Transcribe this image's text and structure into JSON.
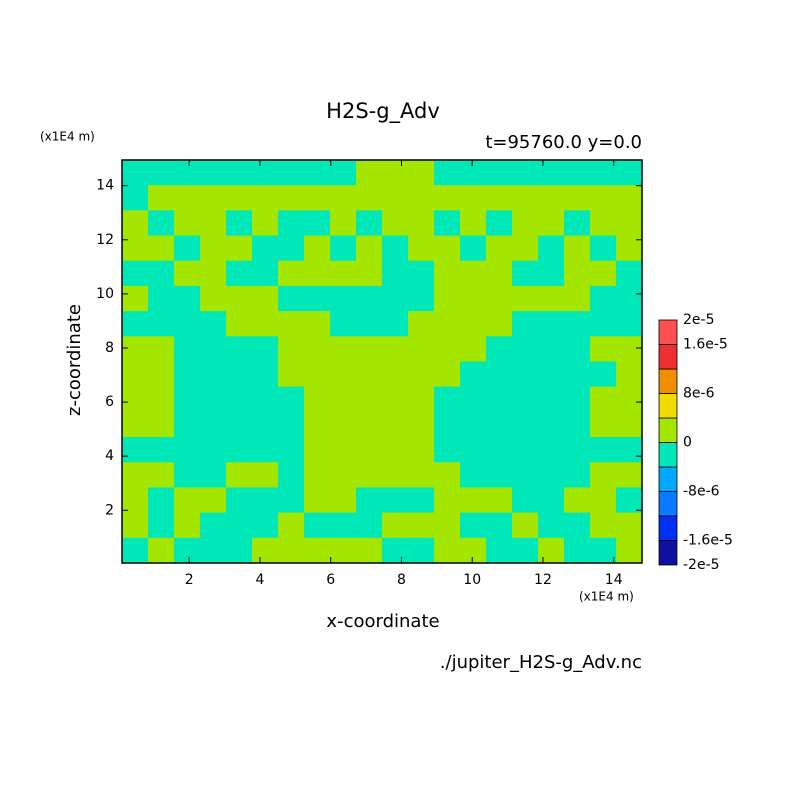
{
  "chart_data": {
    "type": "contour",
    "title": "H2S-g_Adv",
    "subtitle": "t=95760.0 y=0.0",
    "x_label": "x-coordinate",
    "y_label": "z-coordinate",
    "x_unit": "(x1E4 m)",
    "y_unit": "(x1E4 m)",
    "source": "./jupiter_H2S-g_Adv.nc",
    "xlim": [
      0.1,
      14.8
    ],
    "ylim": [
      0.05,
      14.95
    ],
    "xticks": [
      2,
      4,
      6,
      8,
      10,
      12,
      14
    ],
    "yticks": [
      2,
      4,
      6,
      8,
      10,
      12,
      14
    ],
    "z": [
      [
        -2e-06,
        -2e-06,
        -2e-06,
        -2e-06,
        -2e-06,
        -2e-06,
        -2e-06,
        -2e-06,
        -2e-06,
        2e-06,
        2e-06,
        2e-06,
        -2e-06,
        -2e-06,
        -2e-06,
        -2e-06,
        -2e-06,
        -2e-06,
        -2e-06,
        -2e-06
      ],
      [
        -2e-06,
        2e-06,
        2e-06,
        2e-06,
        2e-06,
        2e-06,
        2e-06,
        2e-06,
        2e-06,
        2e-06,
        2e-06,
        2e-06,
        2e-06,
        2e-06,
        2e-06,
        2e-06,
        2e-06,
        2e-06,
        2e-06,
        2e-06
      ],
      [
        2e-06,
        -2e-06,
        2e-06,
        2e-06,
        -2e-06,
        2e-06,
        -2e-06,
        -2e-06,
        2e-06,
        -2e-06,
        2e-06,
        2e-06,
        -2e-06,
        2e-06,
        -2e-06,
        2e-06,
        2e-06,
        -2e-06,
        2e-06,
        2e-06
      ],
      [
        2e-06,
        2e-06,
        -2e-06,
        2e-06,
        2e-06,
        -2e-06,
        -2e-06,
        2e-06,
        -2e-06,
        2e-06,
        -2e-06,
        2e-06,
        2e-06,
        -2e-06,
        2e-06,
        2e-06,
        -2e-06,
        2e-06,
        -2e-06,
        2e-06
      ],
      [
        -2e-06,
        -2e-06,
        2e-06,
        2e-06,
        -2e-06,
        -2e-06,
        2e-06,
        2e-06,
        2e-06,
        2e-06,
        -2e-06,
        -2e-06,
        2e-06,
        2e-06,
        2e-06,
        -2e-06,
        -2e-06,
        2e-06,
        2e-06,
        -2e-06
      ],
      [
        2e-06,
        -2e-06,
        -2e-06,
        2e-06,
        2e-06,
        2e-06,
        -2e-06,
        -2e-06,
        -2e-06,
        -2e-06,
        -2e-06,
        -2e-06,
        2e-06,
        2e-06,
        2e-06,
        2e-06,
        2e-06,
        2e-06,
        -2e-06,
        -2e-06
      ],
      [
        -2e-06,
        -2e-06,
        -2e-06,
        -2e-06,
        2e-06,
        2e-06,
        2e-06,
        2e-06,
        -2e-06,
        -2e-06,
        -2e-06,
        2e-06,
        2e-06,
        2e-06,
        2e-06,
        -2e-06,
        -2e-06,
        -2e-06,
        -2e-06,
        -2e-06
      ],
      [
        2e-06,
        2e-06,
        -2e-06,
        -2e-06,
        -2e-06,
        -2e-06,
        2e-06,
        2e-06,
        2e-06,
        2e-06,
        2e-06,
        2e-06,
        2e-06,
        2e-06,
        -2e-06,
        -2e-06,
        -2e-06,
        -2e-06,
        2e-06,
        2e-06
      ],
      [
        2e-06,
        2e-06,
        -2e-06,
        -2e-06,
        -2e-06,
        -2e-06,
        2e-06,
        2e-06,
        2e-06,
        2e-06,
        2e-06,
        2e-06,
        2e-06,
        -2e-06,
        -2e-06,
        -2e-06,
        -2e-06,
        -2e-06,
        -2e-06,
        2e-06
      ],
      [
        2e-06,
        2e-06,
        -2e-06,
        -2e-06,
        -2e-06,
        -2e-06,
        -2e-06,
        2e-06,
        2e-06,
        2e-06,
        2e-06,
        2e-06,
        -2e-06,
        -2e-06,
        -2e-06,
        -2e-06,
        -2e-06,
        -2e-06,
        2e-06,
        2e-06
      ],
      [
        2e-06,
        2e-06,
        -2e-06,
        -2e-06,
        -2e-06,
        -2e-06,
        -2e-06,
        2e-06,
        2e-06,
        2e-06,
        2e-06,
        2e-06,
        -2e-06,
        -2e-06,
        -2e-06,
        -2e-06,
        -2e-06,
        -2e-06,
        2e-06,
        2e-06
      ],
      [
        -2e-06,
        -2e-06,
        -2e-06,
        -2e-06,
        -2e-06,
        -2e-06,
        -2e-06,
        2e-06,
        2e-06,
        2e-06,
        2e-06,
        2e-06,
        -2e-06,
        -2e-06,
        -2e-06,
        -2e-06,
        -2e-06,
        -2e-06,
        -2e-06,
        -2e-06
      ],
      [
        2e-06,
        2e-06,
        -2e-06,
        -2e-06,
        2e-06,
        2e-06,
        -2e-06,
        2e-06,
        2e-06,
        2e-06,
        2e-06,
        2e-06,
        2e-06,
        -2e-06,
        -2e-06,
        -2e-06,
        -2e-06,
        -2e-06,
        2e-06,
        2e-06
      ],
      [
        2e-06,
        -2e-06,
        2e-06,
        2e-06,
        -2e-06,
        -2e-06,
        -2e-06,
        2e-06,
        2e-06,
        -2e-06,
        -2e-06,
        -2e-06,
        2e-06,
        2e-06,
        2e-06,
        -2e-06,
        -2e-06,
        2e-06,
        2e-06,
        -2e-06
      ],
      [
        2e-06,
        -2e-06,
        2e-06,
        -2e-06,
        -2e-06,
        -2e-06,
        2e-06,
        -2e-06,
        -2e-06,
        -2e-06,
        2e-06,
        2e-06,
        2e-06,
        -2e-06,
        -2e-06,
        2e-06,
        -2e-06,
        -2e-06,
        2e-06,
        2e-06
      ],
      [
        -2e-06,
        2e-06,
        -2e-06,
        -2e-06,
        -2e-06,
        2e-06,
        2e-06,
        2e-06,
        2e-06,
        2e-06,
        -2e-06,
        -2e-06,
        2e-06,
        2e-06,
        -2e-06,
        -2e-06,
        2e-06,
        -2e-06,
        -2e-06,
        2e-06
      ]
    ],
    "colorbar": {
      "levels": [
        -2e-05,
        -1.6e-05,
        -1.2e-05,
        -8e-06,
        -4e-06,
        0,
        4e-06,
        8e-06,
        1.2e-05,
        1.6e-05,
        2e-05
      ],
      "colors": [
        "#1010a0",
        "#0030f0",
        "#0a78ff",
        "#00a8ff",
        "#00e8b8",
        "#a5e600",
        "#f0dc00",
        "#f09000",
        "#f03030",
        "#ff5050"
      ],
      "ticks": [
        {
          "value": 2e-05,
          "label": "2e-5"
        },
        {
          "value": 1.6e-05,
          "label": "1.6e-5"
        },
        {
          "value": 8e-06,
          "label": "8e-6"
        },
        0,
        {
          "value": -8e-06,
          "label": "-8e-6"
        },
        {
          "value": -1.6e-05,
          "label": "-1.6e-5"
        },
        {
          "value": -2e-05,
          "label": "-2e-5"
        }
      ]
    }
  }
}
